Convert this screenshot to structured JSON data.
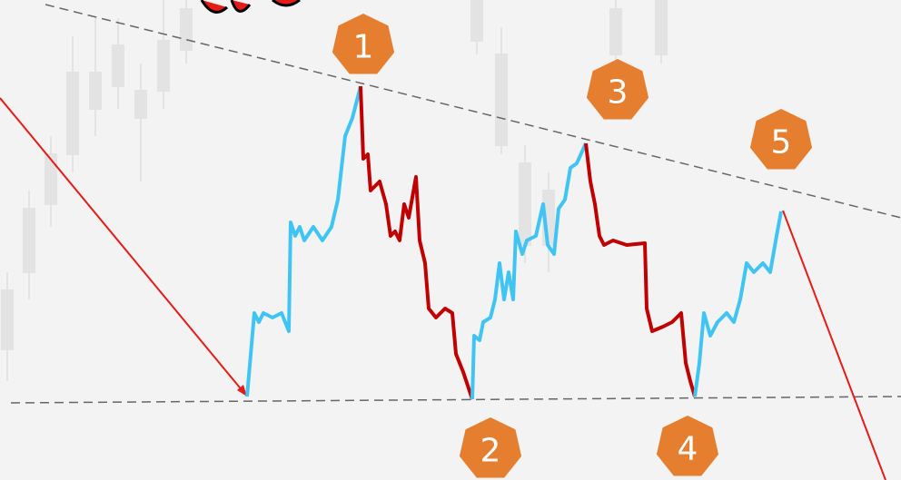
{
  "markers": [
    {
      "label": "1"
    },
    {
      "label": "2"
    },
    {
      "label": "3"
    },
    {
      "label": "4"
    },
    {
      "label": "5"
    }
  ]
}
